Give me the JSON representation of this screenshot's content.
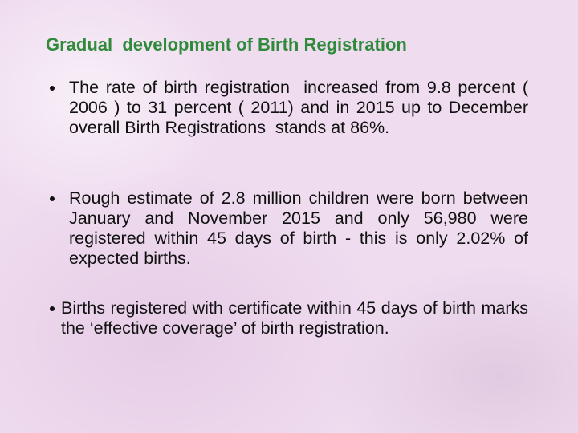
{
  "title": "Gradual  development of Birth Registration",
  "bullets": [
    "The rate of birth registration  increased from 9.8 percent ( 2006 ) to 31 percent ( 2011) and in 2015 up to December overall Birth Registrations  stands at 86%.",
    "Rough estimate of 2.8 million children were born between January and November 2015 and only 56,980 were registered within 45 days of birth - this is only 2.02% of expected births.",
    "Births registered with certificate within 45 days of birth marks the ‘effective coverage’ of birth registration."
  ]
}
